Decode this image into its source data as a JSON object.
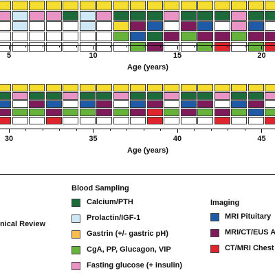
{
  "colors": {
    "yellow": "#f5dd2f",
    "pink": "#ea94c5",
    "lightblue": "#cfe8f6",
    "green": "#1d6b3b",
    "lime": "#66b23b",
    "darkblue": "#1f5aa6",
    "purple": "#7f1b5b",
    "red": "#e0252f",
    "orange": "#f6bd4c",
    "white": "#ffffff"
  },
  "panel_top": {
    "ticks": [
      "5",
      "10",
      "15",
      "20"
    ],
    "axis_title": "Age (years)",
    "grid": [
      [
        "yellow",
        "yellow",
        "yellow",
        "yellow",
        "yellow",
        "yellow",
        "yellow",
        "yellow",
        "yellow",
        "yellow",
        "yellow",
        "yellow",
        "yellow",
        "yellow",
        "yellow",
        "yellow",
        "yellow"
      ],
      [
        "pink",
        "lightblue",
        "pink",
        "pink",
        "green",
        "lightblue",
        "pink",
        "green",
        "green",
        "green",
        "pink",
        "green",
        "green",
        "green",
        "pink",
        "green",
        "green"
      ],
      [
        "white",
        "lightblue",
        "white",
        "white",
        "white",
        "lightblue",
        "white",
        "yellow",
        "purple",
        "darkblue",
        "white",
        "purple",
        "darkblue",
        "white",
        "pink",
        "darkblue",
        "white"
      ],
      [
        "white",
        "white",
        "white",
        "white",
        "white",
        "white",
        "white",
        "lime",
        "darkblue",
        "green",
        "purple",
        "lime",
        "purple",
        "purple",
        "lime",
        "purple",
        "purple"
      ],
      [
        "white",
        "white",
        "white",
        "white",
        "white",
        "white",
        "white",
        "white",
        "lime",
        "purple",
        "white",
        "white",
        "lime",
        "red",
        "white",
        "lime",
        "red"
      ]
    ]
  },
  "panel_bottom": {
    "ticks": [
      "30",
      "35",
      "40",
      "45"
    ],
    "axis_title": "Age (years)",
    "grid": [
      [
        "yellow",
        "yellow",
        "yellow",
        "yellow",
        "yellow",
        "yellow",
        "yellow",
        "yellow",
        "yellow",
        "yellow",
        "yellow",
        "yellow",
        "yellow",
        "yellow",
        "yellow",
        "yellow",
        "yellow"
      ],
      [
        "green",
        "pink",
        "green",
        "green",
        "pink",
        "green",
        "green",
        "pink",
        "green",
        "green",
        "pink",
        "green",
        "green",
        "pink",
        "green",
        "green",
        "pink"
      ],
      [
        "darkblue",
        "white",
        "purple",
        "darkblue",
        "white",
        "darkblue",
        "purple",
        "white",
        "darkblue",
        "purple",
        "white",
        "darkblue",
        "purple",
        "white",
        "darkblue",
        "purple",
        "white"
      ],
      [
        "purple",
        "lime",
        "lime",
        "purple",
        "lime",
        "lime",
        "purple",
        "lime",
        "purple",
        "red",
        "lime",
        "purple",
        "lime",
        "purple",
        "lime",
        "darkblue",
        "lime"
      ],
      [
        "red",
        "white",
        "white",
        "red",
        "white",
        "white",
        "white",
        "white",
        "white",
        "red",
        "white",
        "white",
        "white",
        "red",
        "white",
        "white",
        "red"
      ]
    ]
  },
  "legend": {
    "left_heading": "nical Review",
    "blood_heading": "Blood Sampling",
    "blood_items": [
      {
        "color": "green",
        "label": "Calcium/PTH"
      },
      {
        "color": "lightblue",
        "label": "Prolactin/IGF-1"
      },
      {
        "color": "orange",
        "label": "Gastrin (+/- gastric pH)"
      },
      {
        "color": "lime",
        "label": "CgA, PP, Glucagon, VIP"
      },
      {
        "color": "pink",
        "label": "Fasting glucose (+ insulin)"
      }
    ],
    "imaging_heading": "Imaging",
    "imaging_items": [
      {
        "color": "darkblue",
        "label": "MRI Pituitary"
      },
      {
        "color": "purple",
        "label": "MRI/CT/EUS A"
      },
      {
        "color": "red",
        "label": "CT/MRI Chest"
      }
    ]
  }
}
